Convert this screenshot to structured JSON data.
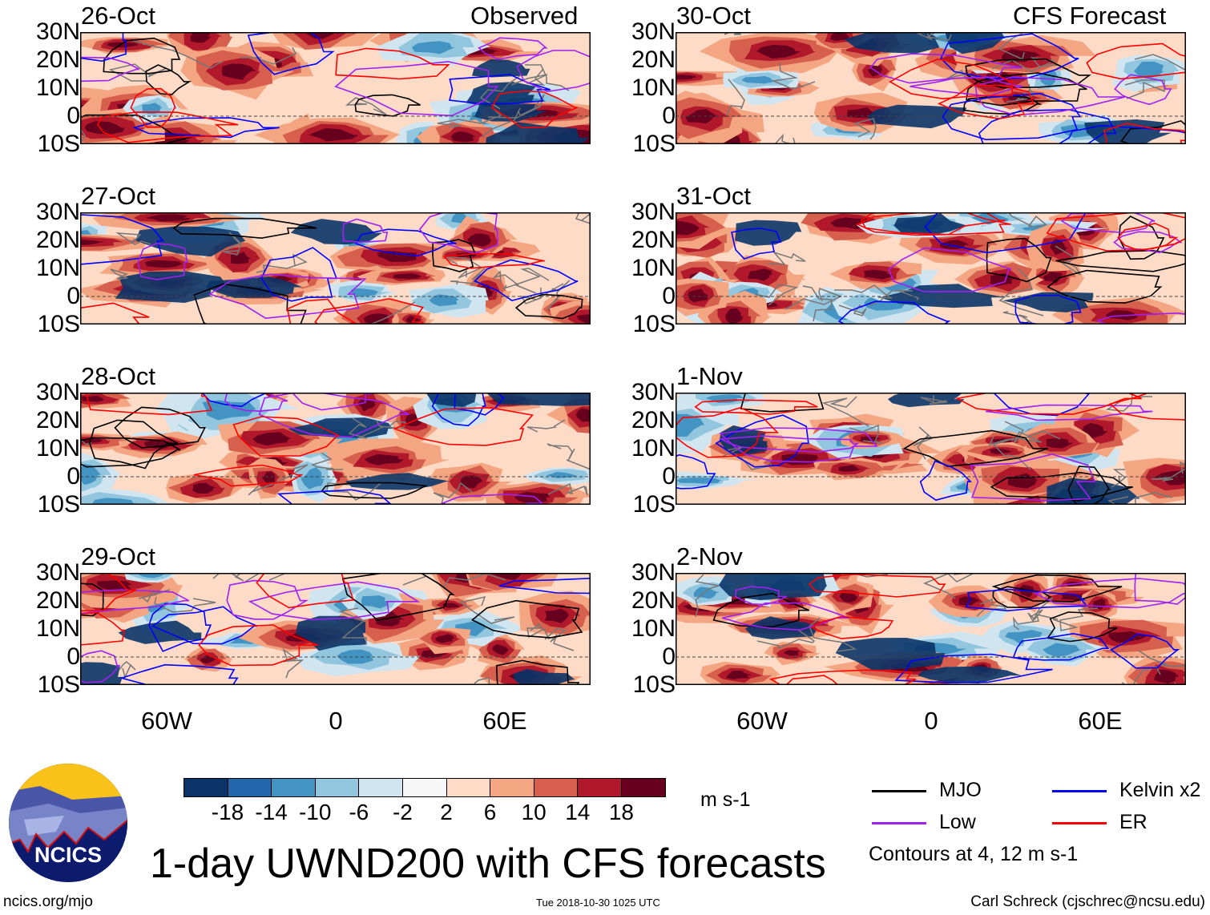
{
  "headers": {
    "left": "Observed",
    "right": "CFS Forecast"
  },
  "panels": [
    {
      "date": "26-Oct",
      "col": "left",
      "row": 0
    },
    {
      "date": "27-Oct",
      "col": "left",
      "row": 1
    },
    {
      "date": "28-Oct",
      "col": "left",
      "row": 2
    },
    {
      "date": "29-Oct",
      "col": "left",
      "row": 3
    },
    {
      "date": "30-Oct",
      "col": "right",
      "row": 0
    },
    {
      "date": "31-Oct",
      "col": "right",
      "row": 1
    },
    {
      "date": "1-Nov",
      "col": "right",
      "row": 2
    },
    {
      "date": "2-Nov",
      "col": "right",
      "row": 3
    }
  ],
  "lat_labels": [
    "30N",
    "20N",
    "10N",
    "0",
    "10S"
  ],
  "lon_labels": [
    "60W",
    "0",
    "60E"
  ],
  "colorbar": {
    "colors": [
      "#0a3468",
      "#2266ac",
      "#4393c3",
      "#92c5de",
      "#d1e5f0",
      "#f7f7f7",
      "#fddbc7",
      "#f4a582",
      "#d6604d",
      "#b2182b",
      "#67001f"
    ],
    "ticks": [
      "-18",
      "-14",
      "-10",
      "-6",
      "-2",
      "2",
      "6",
      "10",
      "14",
      "18"
    ],
    "units": "m s-1"
  },
  "legend": {
    "items": [
      {
        "label": "MJO",
        "color": "#000000"
      },
      {
        "label": "Kelvin x2",
        "color": "#0000ff"
      },
      {
        "label": "Low",
        "color": "#a020f0"
      },
      {
        "label": "ER",
        "color": "#ff0000"
      }
    ],
    "note": "Contours at 4, 12 m s-1"
  },
  "title": "1-day UWND200 with CFS forecasts",
  "logo_text": "NCICS",
  "footer": {
    "left": "ncics.org/mjo",
    "center": "Tue 2018-10-30 1025 UTC",
    "right": "Carl Schreck (cjschrec@ncsu.edu)"
  }
}
